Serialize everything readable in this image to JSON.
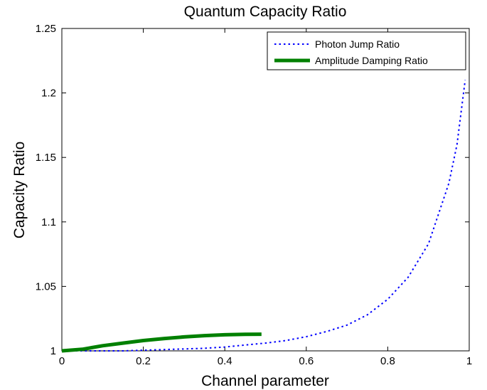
{
  "chart_data": {
    "type": "line",
    "title": "Quantum Capacity Ratio",
    "xlabel": "Channel parameter",
    "ylabel": "Capacity Ratio",
    "xlim": [
      0,
      1
    ],
    "ylim": [
      1,
      1.25
    ],
    "xticks": [
      0,
      0.2,
      0.4,
      0.6,
      0.8,
      1
    ],
    "xtick_labels": [
      "0",
      "0.2",
      "0.4",
      "0.6",
      "0.8",
      "1"
    ],
    "yticks": [
      1,
      1.05,
      1.1,
      1.15,
      1.2,
      1.25
    ],
    "ytick_labels": [
      "1",
      "1.05",
      "1.1",
      "1.15",
      "1.2",
      "1.25"
    ],
    "grid": false,
    "legend_position": "top-right",
    "series": [
      {
        "name": "Photon Jump Ratio",
        "color": "#0000ff",
        "style": "dotted",
        "x": [
          0,
          0.05,
          0.1,
          0.15,
          0.2,
          0.25,
          0.3,
          0.35,
          0.4,
          0.45,
          0.5,
          0.55,
          0.6,
          0.65,
          0.7,
          0.75,
          0.8,
          0.85,
          0.9,
          0.95,
          0.97,
          0.99
        ],
        "y": [
          1.0,
          1.0,
          1.0,
          1.0,
          1.0005,
          1.001,
          1.0015,
          1.002,
          1.003,
          1.0045,
          1.006,
          1.008,
          1.011,
          1.015,
          1.02,
          1.028,
          1.04,
          1.057,
          1.083,
          1.13,
          1.16,
          1.21
        ]
      },
      {
        "name": "Amplitude Damping Ratio",
        "color": "#008000",
        "style": "solid",
        "x": [
          0,
          0.05,
          0.1,
          0.15,
          0.2,
          0.25,
          0.3,
          0.35,
          0.4,
          0.45,
          0.49
        ],
        "y": [
          1.0,
          1.0012,
          1.004,
          1.006,
          1.008,
          1.0095,
          1.0108,
          1.0118,
          1.0125,
          1.0128,
          1.0129
        ]
      }
    ]
  }
}
